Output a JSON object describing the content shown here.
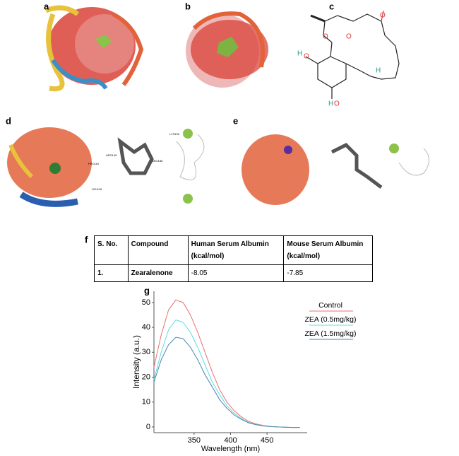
{
  "panel_labels": [
    "a",
    "b",
    "c",
    "d",
    "e",
    "f",
    "g"
  ],
  "structure": {
    "atoms": [
      "O",
      "O",
      "O",
      "H",
      "O",
      "H",
      "O",
      "H"
    ]
  },
  "docking_d": {
    "residues": [
      "ARG145",
      "PRO110",
      "LEU115",
      "ARG186",
      "LYS190"
    ]
  },
  "table": {
    "header": [
      "S. No.",
      "Compound",
      "Human Serum Albumin (kcal/mol)",
      "Mouse Serum Albumin (kcal/mol)"
    ],
    "rows": [
      [
        "1.",
        "Zearalenone",
        "-8.05",
        "-7.85"
      ]
    ]
  },
  "chart_data": {
    "type": "line",
    "xlabel": "Wavelength (nm)",
    "ylabel": "Intensity (a.u.)",
    "x": [
      295,
      305,
      315,
      325,
      335,
      345,
      355,
      365,
      375,
      385,
      395,
      405,
      415,
      425,
      435,
      445,
      455,
      465,
      475,
      485,
      495
    ],
    "series": [
      {
        "name": "Control",
        "color": "#e8706e",
        "values": [
          24,
          37,
          47,
          51,
          50,
          45,
          38,
          30,
          22,
          15,
          10,
          6.5,
          4,
          2.2,
          1.2,
          0.6,
          0.2,
          0,
          -0.1,
          -0.2,
          -0.2
        ]
      },
      {
        "name": "ZEA (0.5mg/kg)",
        "color": "#5cdce6",
        "values": [
          19,
          30,
          39,
          43,
          42,
          38,
          32,
          25,
          18,
          13,
          8.5,
          5.5,
          3.3,
          1.8,
          1,
          0.5,
          0.2,
          0,
          -0.1,
          -0.2,
          -0.2
        ]
      },
      {
        "name": "ZEA (1.5mg/kg)",
        "color": "#4a86ad",
        "values": [
          18,
          27,
          33,
          36,
          35.5,
          32,
          27,
          21,
          16,
          11,
          7.5,
          4.8,
          3,
          1.6,
          0.9,
          0.4,
          0.1,
          0,
          -0.1,
          -0.2,
          -0.2
        ]
      }
    ],
    "xlim": [
      295,
      505
    ],
    "ylim": [
      -2.3,
      54.5
    ],
    "xticks": [
      350,
      400,
      450
    ],
    "yticks": [
      0,
      10,
      20,
      30,
      40,
      50
    ]
  }
}
